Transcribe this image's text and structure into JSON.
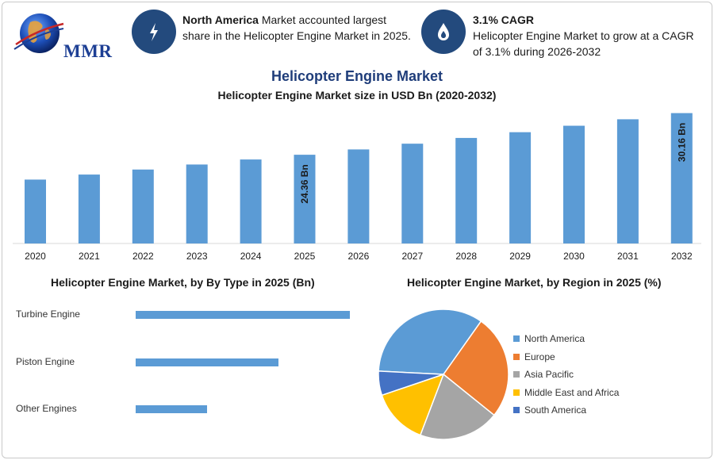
{
  "header": {
    "logo_text": "MMR",
    "info1": {
      "icon": "lightning-bolt-icon",
      "bold": "North America",
      "rest": " Market accounted largest share in the Helicopter Engine Market in 2025."
    },
    "info2": {
      "icon": "flame-drop-icon",
      "bold": "3.1% CAGR",
      "rest": "Helicopter Engine Market to grow at a CAGR of 3.1% during 2026-2032"
    }
  },
  "titles": {
    "main": "Helicopter Engine Market",
    "sub": "Helicopter Engine Market size in USD Bn (2020-2032)",
    "type_chart": "Helicopter Engine Market, by By Type in 2025 (Bn)",
    "region_chart": "Helicopter Engine Market, by Region in 2025 (%)"
  },
  "colors": {
    "bar": "#5b9bd5",
    "title": "#1f3d7a",
    "icon_bg": "#234a7d"
  },
  "chart_data": [
    {
      "type": "bar",
      "categories": [
        "2020",
        "2021",
        "2022",
        "2023",
        "2024",
        "2025",
        "2026",
        "2027",
        "2028",
        "2029",
        "2030",
        "2031",
        "2032"
      ],
      "values": [
        20.9,
        21.6,
        22.3,
        23.0,
        23.7,
        24.36,
        25.1,
        25.9,
        26.7,
        27.5,
        28.4,
        29.3,
        30.16
      ],
      "data_labels": {
        "5": "24.36 Bn",
        "12": "30.16 Bn"
      },
      "ylim": [
        0,
        31
      ],
      "grid": false
    },
    {
      "type": "bar",
      "orientation": "horizontal",
      "categories": [
        "Turbine Engine",
        "Piston Engine",
        "Other Engines"
      ],
      "values": [
        15.0,
        10.0,
        5.0
      ],
      "xlim": [
        0,
        15
      ],
      "grid": false
    },
    {
      "type": "pie",
      "labels": [
        "North America",
        "Europe",
        "Asia Pacific",
        "Middle East and Africa",
        "South America"
      ],
      "values": [
        34,
        26,
        20,
        14,
        6
      ],
      "colors": [
        "#5b9bd5",
        "#ed7d31",
        "#a5a5a5",
        "#ffc000",
        "#4472c4"
      ],
      "legend": "right"
    }
  ]
}
